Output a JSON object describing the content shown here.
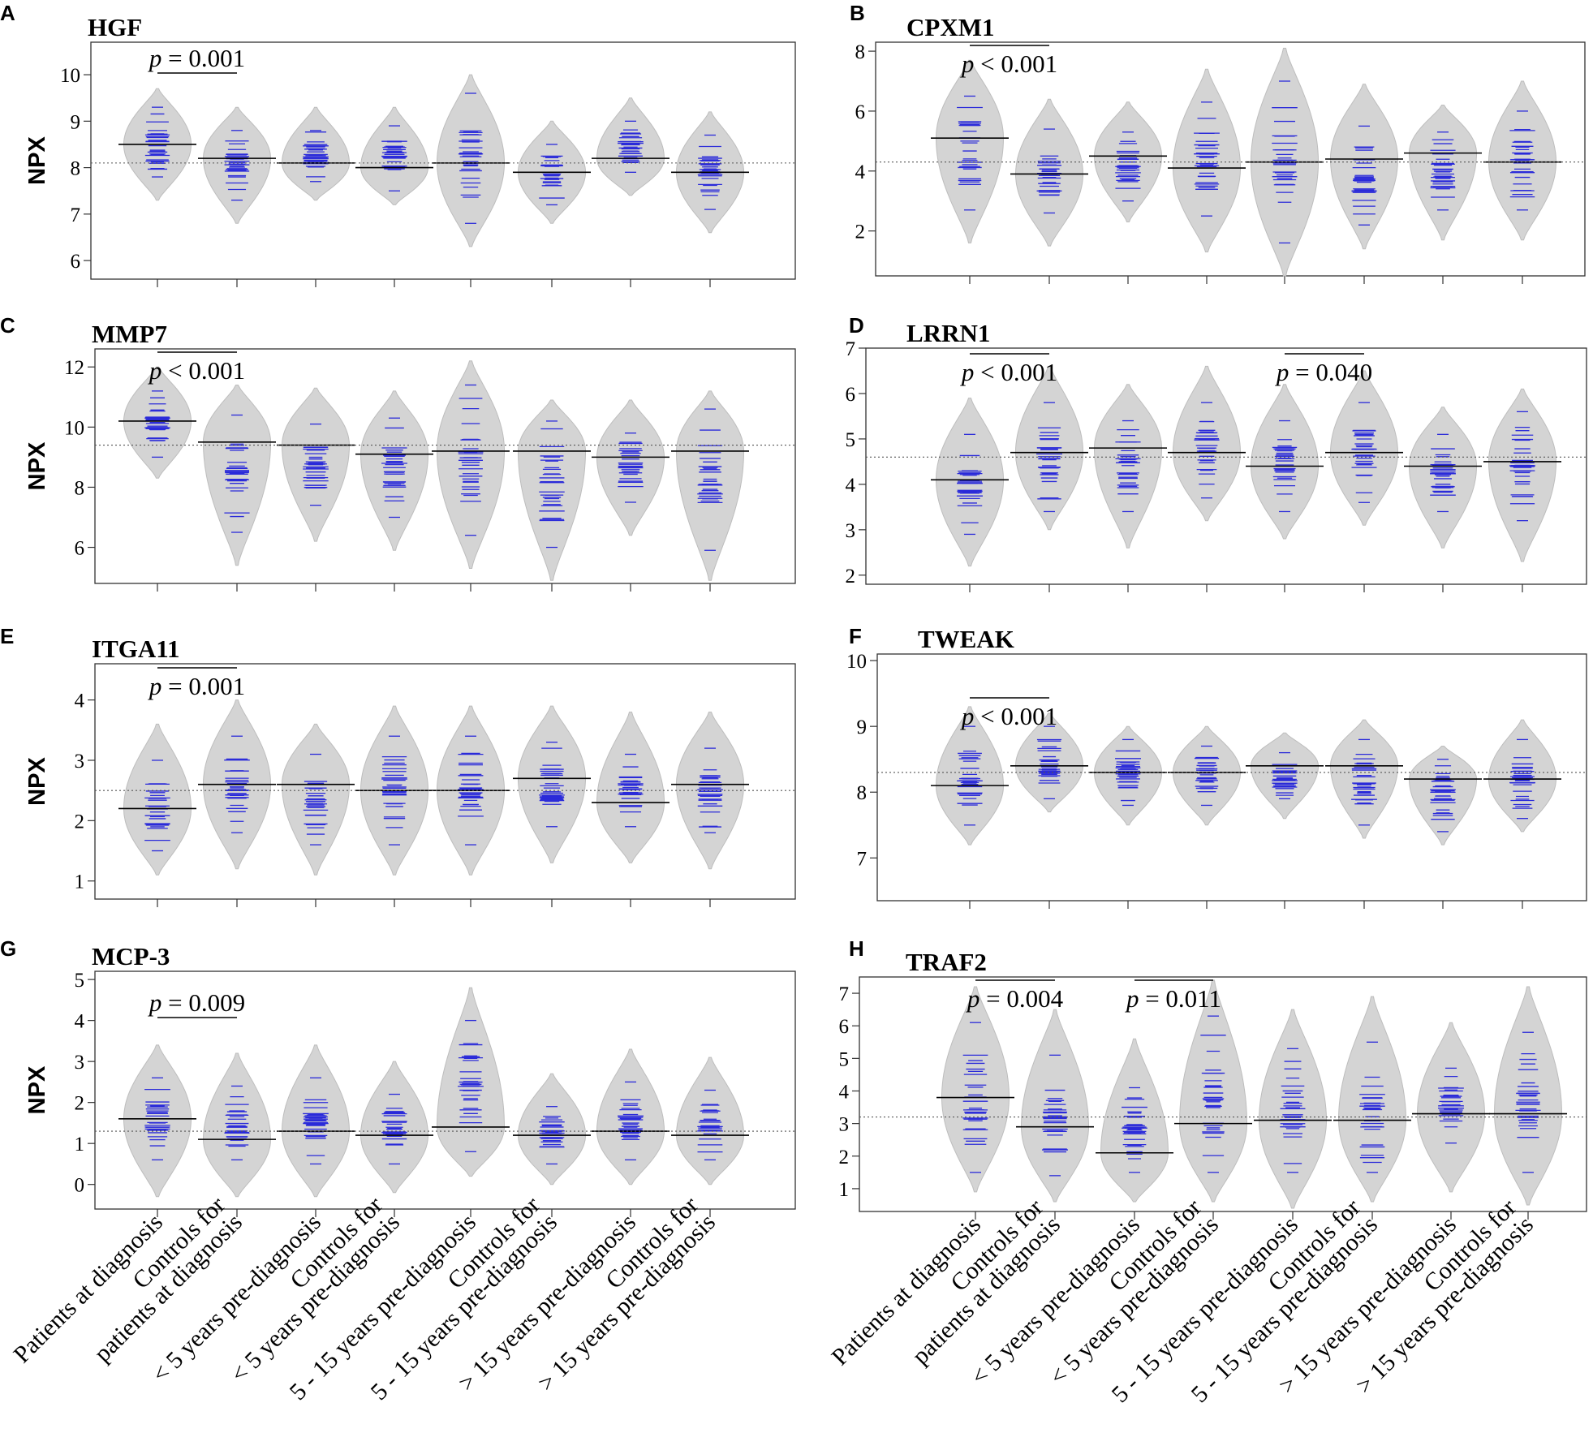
{
  "figure": {
    "y_axis_label": "NPX",
    "colors": {
      "violin_fill": "#d4d4d4",
      "violin_stroke": "#bdbdbd",
      "points": "#2b2bd9",
      "median": "#000000",
      "reference": "#555555",
      "frame": "#333333"
    }
  },
  "chart_data": [
    {
      "panel": "A",
      "type": "violin",
      "title": "HGF",
      "ylabel": "NPX",
      "yticks": [
        6,
        7,
        8,
        9,
        10
      ],
      "ylim": [
        5.6,
        10.7
      ],
      "reference": 8.1,
      "medians": [
        8.5,
        8.2,
        8.1,
        8.0,
        8.1,
        7.9,
        8.2,
        7.9
      ],
      "groups": [
        {
          "median": 8.5,
          "low": 7.3,
          "high": 9.7,
          "bottom": 7.8,
          "top": 9.3
        },
        {
          "median": 8.2,
          "low": 6.8,
          "high": 9.3,
          "bottom": 7.3,
          "top": 8.8
        },
        {
          "median": 8.1,
          "low": 7.3,
          "high": 9.3,
          "bottom": 7.7,
          "top": 8.8
        },
        {
          "median": 8.0,
          "low": 7.2,
          "high": 9.3,
          "bottom": 7.5,
          "top": 8.9
        },
        {
          "median": 8.1,
          "low": 6.3,
          "high": 10.0,
          "bottom": 6.8,
          "top": 9.6
        },
        {
          "median": 7.9,
          "low": 6.8,
          "high": 9.0,
          "bottom": 7.2,
          "top": 8.5
        },
        {
          "median": 8.2,
          "low": 7.4,
          "high": 9.5,
          "bottom": 7.9,
          "top": 9.0
        },
        {
          "median": 7.9,
          "low": 6.6,
          "high": 9.2,
          "bottom": 7.1,
          "top": 8.7
        }
      ],
      "annotations": [
        {
          "text": "p = 0.001",
          "from": 0,
          "to": 1,
          "pos": "above"
        }
      ]
    },
    {
      "panel": "B",
      "type": "violin",
      "title": "CPXM1",
      "ylabel": "NPX",
      "yticks": [
        2,
        4,
        6,
        8
      ],
      "ylim": [
        0.5,
        8.3
      ],
      "reference": 4.3,
      "medians": [
        5.1,
        3.9,
        4.5,
        4.1,
        4.3,
        4.4,
        4.6,
        4.3
      ],
      "groups": [
        {
          "median": 5.1,
          "low": 1.6,
          "high": 7.7,
          "bottom": 2.7,
          "top": 6.5
        },
        {
          "median": 3.9,
          "low": 1.5,
          "high": 6.4,
          "bottom": 2.6,
          "top": 5.4
        },
        {
          "median": 4.5,
          "low": 2.3,
          "high": 6.3,
          "bottom": 3.0,
          "top": 5.3
        },
        {
          "median": 4.1,
          "low": 1.3,
          "high": 7.4,
          "bottom": 2.5,
          "top": 6.3
        },
        {
          "median": 4.3,
          "low": 0.5,
          "high": 8.1,
          "bottom": 1.6,
          "top": 7.0
        },
        {
          "median": 4.4,
          "low": 1.4,
          "high": 6.9,
          "bottom": 2.2,
          "top": 5.5
        },
        {
          "median": 4.6,
          "low": 1.7,
          "high": 6.2,
          "bottom": 2.7,
          "top": 5.3
        },
        {
          "median": 4.3,
          "low": 1.7,
          "high": 7.0,
          "bottom": 2.7,
          "top": 6.0
        }
      ],
      "annotations": [
        {
          "text": "p < 0.001",
          "from": 0,
          "to": 1,
          "pos": "below"
        }
      ]
    },
    {
      "panel": "C",
      "type": "violin",
      "title": "MMP7",
      "ylabel": "NPX",
      "yticks": [
        6,
        8,
        10,
        12
      ],
      "ylim": [
        4.8,
        12.6
      ],
      "reference": 9.4,
      "medians": [
        10.2,
        9.5,
        9.4,
        9.1,
        9.2,
        9.2,
        9.0,
        9.2
      ],
      "groups": [
        {
          "median": 10.2,
          "low": 8.3,
          "high": 12.0,
          "bottom": 9.0,
          "top": 11.2
        },
        {
          "median": 9.5,
          "low": 5.4,
          "high": 11.4,
          "bottom": 6.5,
          "top": 10.4
        },
        {
          "median": 9.4,
          "low": 6.2,
          "high": 11.3,
          "bottom": 7.4,
          "top": 10.1
        },
        {
          "median": 9.1,
          "low": 5.9,
          "high": 11.2,
          "bottom": 7.0,
          "top": 10.3
        },
        {
          "median": 9.2,
          "low": 5.3,
          "high": 12.2,
          "bottom": 6.4,
          "top": 11.4
        },
        {
          "median": 9.2,
          "low": 4.9,
          "high": 10.9,
          "bottom": 6.0,
          "top": 10.2
        },
        {
          "median": 9.0,
          "low": 6.4,
          "high": 10.9,
          "bottom": 7.5,
          "top": 9.8
        },
        {
          "median": 9.2,
          "low": 4.9,
          "high": 11.2,
          "bottom": 5.9,
          "top": 10.6
        }
      ],
      "annotations": [
        {
          "text": "p < 0.001",
          "from": 0,
          "to": 1,
          "pos": "below"
        }
      ]
    },
    {
      "panel": "D",
      "type": "violin",
      "title": "LRRN1",
      "ylabel": "NPX",
      "yticks": [
        2,
        3,
        4,
        5,
        6,
        7
      ],
      "ylim": [
        1.8,
        7.0
      ],
      "reference": 4.6,
      "medians": [
        4.1,
        4.7,
        4.8,
        4.7,
        4.4,
        4.7,
        4.4,
        4.5
      ],
      "groups": [
        {
          "median": 4.1,
          "low": 2.2,
          "high": 5.9,
          "bottom": 2.9,
          "top": 5.1
        },
        {
          "median": 4.7,
          "low": 3.0,
          "high": 6.6,
          "bottom": 3.4,
          "top": 5.8
        },
        {
          "median": 4.8,
          "low": 2.6,
          "high": 6.2,
          "bottom": 3.4,
          "top": 5.4
        },
        {
          "median": 4.7,
          "low": 3.2,
          "high": 6.6,
          "bottom": 3.7,
          "top": 5.8
        },
        {
          "median": 4.4,
          "low": 2.8,
          "high": 6.2,
          "bottom": 3.4,
          "top": 5.4
        },
        {
          "median": 4.7,
          "low": 3.1,
          "high": 6.5,
          "bottom": 3.6,
          "top": 5.8
        },
        {
          "median": 4.4,
          "low": 2.6,
          "high": 5.7,
          "bottom": 3.4,
          "top": 5.1
        },
        {
          "median": 4.5,
          "low": 2.3,
          "high": 6.1,
          "bottom": 3.2,
          "top": 5.6
        }
      ],
      "annotations": [
        {
          "text": "p < 0.001",
          "from": 0,
          "to": 1,
          "pos": "below"
        },
        {
          "text": "p = 0.040",
          "from": 4,
          "to": 5,
          "pos": "below"
        }
      ]
    },
    {
      "panel": "E",
      "type": "violin",
      "title": "ITGA11",
      "ylabel": "NPX",
      "yticks": [
        1,
        2,
        3,
        4
      ],
      "ylim": [
        0.7,
        4.6
      ],
      "reference": 2.5,
      "medians": [
        2.2,
        2.6,
        2.6,
        2.5,
        2.5,
        2.7,
        2.3,
        2.6
      ],
      "groups": [
        {
          "median": 2.2,
          "low": 1.1,
          "high": 3.6,
          "bottom": 1.5,
          "top": 3.0
        },
        {
          "median": 2.6,
          "low": 1.2,
          "high": 4.0,
          "bottom": 1.8,
          "top": 3.4
        },
        {
          "median": 2.6,
          "low": 1.1,
          "high": 3.6,
          "bottom": 1.6,
          "top": 3.1
        },
        {
          "median": 2.5,
          "low": 1.1,
          "high": 3.9,
          "bottom": 1.6,
          "top": 3.4
        },
        {
          "median": 2.5,
          "low": 1.1,
          "high": 3.9,
          "bottom": 1.6,
          "top": 3.4
        },
        {
          "median": 2.7,
          "low": 1.3,
          "high": 3.9,
          "bottom": 1.9,
          "top": 3.3
        },
        {
          "median": 2.3,
          "low": 1.3,
          "high": 3.8,
          "bottom": 1.9,
          "top": 3.1
        },
        {
          "median": 2.6,
          "low": 1.2,
          "high": 3.8,
          "bottom": 1.8,
          "top": 3.2
        }
      ],
      "annotations": [
        {
          "text": "p = 0.001",
          "from": 0,
          "to": 1,
          "pos": "below"
        }
      ]
    },
    {
      "panel": "F",
      "type": "violin",
      "title": "TWEAK",
      "ylabel": "NPX",
      "yticks": [
        7,
        8,
        9,
        10
      ],
      "ylim": [
        6.35,
        10.1
      ],
      "reference": 8.3,
      "medians": [
        8.1,
        8.4,
        8.3,
        8.3,
        8.4,
        8.4,
        8.2,
        8.2
      ],
      "groups": [
        {
          "median": 8.1,
          "low": 7.2,
          "high": 9.3,
          "bottom": 7.5,
          "top": 9.0
        },
        {
          "median": 8.4,
          "low": 7.7,
          "high": 9.2,
          "bottom": 7.9,
          "top": 9.0
        },
        {
          "median": 8.3,
          "low": 7.5,
          "high": 9.0,
          "bottom": 7.8,
          "top": 8.8
        },
        {
          "median": 8.3,
          "low": 7.5,
          "high": 9.0,
          "bottom": 7.8,
          "top": 8.7
        },
        {
          "median": 8.4,
          "low": 7.6,
          "high": 8.9,
          "bottom": 7.9,
          "top": 8.6
        },
        {
          "median": 8.4,
          "low": 7.3,
          "high": 9.1,
          "bottom": 7.5,
          "top": 8.8
        },
        {
          "median": 8.2,
          "low": 7.2,
          "high": 8.7,
          "bottom": 7.4,
          "top": 8.5
        },
        {
          "median": 8.2,
          "low": 7.4,
          "high": 9.1,
          "bottom": 7.6,
          "top": 8.8
        }
      ],
      "annotations": [
        {
          "text": "p < 0.001",
          "from": 0,
          "to": 1,
          "pos": "below"
        }
      ]
    },
    {
      "panel": "G",
      "type": "violin",
      "title": "MCP-3",
      "ylabel": "NPX",
      "yticks": [
        0,
        1,
        2,
        3,
        4,
        5
      ],
      "ylim": [
        -0.6,
        5.2
      ],
      "reference": 1.3,
      "medians": [
        1.6,
        1.1,
        1.3,
        1.2,
        1.4,
        1.2,
        1.3,
        1.2
      ],
      "groups": [
        {
          "median": 1.6,
          "low": -0.3,
          "high": 3.4,
          "bottom": 0.6,
          "top": 2.6
        },
        {
          "median": 1.1,
          "low": -0.3,
          "high": 3.2,
          "bottom": 0.6,
          "top": 2.4
        },
        {
          "median": 1.3,
          "low": -0.3,
          "high": 3.4,
          "bottom": 0.5,
          "top": 2.6
        },
        {
          "median": 1.2,
          "low": -0.2,
          "high": 3.0,
          "bottom": 0.5,
          "top": 2.2
        },
        {
          "median": 1.4,
          "low": 0.2,
          "high": 4.8,
          "bottom": 0.8,
          "top": 4.0
        },
        {
          "median": 1.2,
          "low": 0.0,
          "high": 2.7,
          "bottom": 0.5,
          "top": 1.9
        },
        {
          "median": 1.3,
          "low": 0.0,
          "high": 3.3,
          "bottom": 0.6,
          "top": 2.5
        },
        {
          "median": 1.2,
          "low": 0.0,
          "high": 3.1,
          "bottom": 0.6,
          "top": 2.3
        }
      ],
      "annotations": [
        {
          "text": "p = 0.009",
          "from": 0,
          "to": 1,
          "pos": "above"
        }
      ]
    },
    {
      "panel": "H",
      "type": "violin",
      "title": "TRAF2",
      "ylabel": "NPX",
      "yticks": [
        1,
        2,
        3,
        4,
        5,
        6,
        7
      ],
      "ylim": [
        0.3,
        7.5
      ],
      "reference": 3.2,
      "medians": [
        3.8,
        2.9,
        2.1,
        3.0,
        3.1,
        3.1,
        3.3,
        3.3
      ],
      "groups": [
        {
          "median": 3.8,
          "low": 0.9,
          "high": 7.2,
          "bottom": 1.5,
          "top": 6.1
        },
        {
          "median": 2.9,
          "low": 0.6,
          "high": 6.5,
          "bottom": 1.4,
          "top": 5.1
        },
        {
          "median": 2.1,
          "low": 0.6,
          "high": 5.6,
          "bottom": 1.5,
          "top": 4.1
        },
        {
          "median": 3.0,
          "low": 0.6,
          "high": 7.4,
          "bottom": 1.5,
          "top": 6.3
        },
        {
          "median": 3.1,
          "low": 0.4,
          "high": 6.5,
          "bottom": 1.5,
          "top": 5.3
        },
        {
          "median": 3.1,
          "low": 0.6,
          "high": 6.9,
          "bottom": 1.5,
          "top": 5.5
        },
        {
          "median": 3.3,
          "low": 0.9,
          "high": 6.1,
          "bottom": 2.4,
          "top": 4.7
        },
        {
          "median": 3.3,
          "low": 0.5,
          "high": 7.2,
          "bottom": 1.5,
          "top": 5.8
        }
      ],
      "annotations": [
        {
          "text": "p = 0.004",
          "from": 0,
          "to": 1,
          "pos": "below"
        },
        {
          "text": "p = 0.011",
          "from": 2,
          "to": 3,
          "pos": "below"
        }
      ]
    }
  ],
  "categories": [
    {
      "lines": [
        "Patients at diagnosis"
      ]
    },
    {
      "lines": [
        "Controls for",
        "patients at diagnosis"
      ]
    },
    {
      "lines": [
        "< 5 years pre-diagnosis"
      ]
    },
    {
      "lines": [
        "Controls for",
        "< 5 years pre-diagnosis"
      ]
    },
    {
      "lines": [
        "5 - 15 years pre-diagnosis"
      ]
    },
    {
      "lines": [
        "Controls for",
        "5 - 15 years pre-diagnosis"
      ]
    },
    {
      "lines": [
        "> 15 years pre-diagnosis"
      ]
    },
    {
      "lines": [
        "Controls for",
        "> 15 years pre-diagnosis"
      ]
    }
  ]
}
